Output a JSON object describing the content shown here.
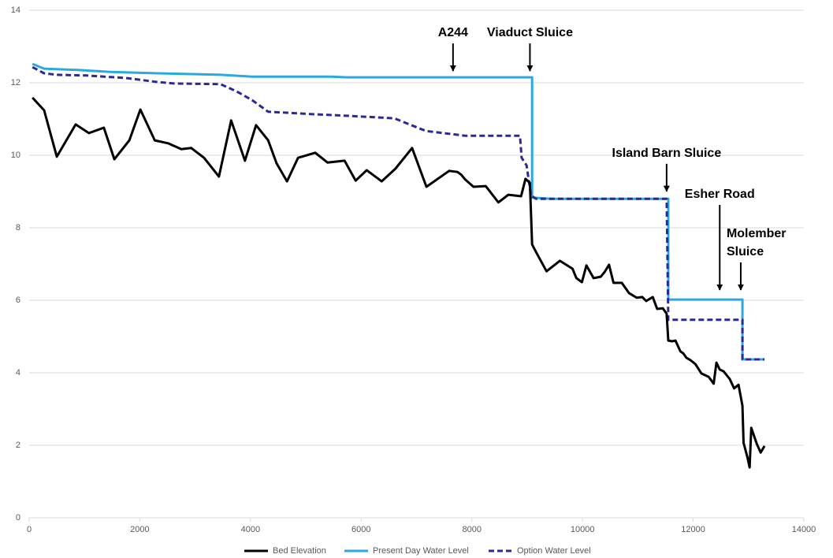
{
  "chart_data": {
    "type": "line",
    "xlim": [
      0,
      14000
    ],
    "xticks": [
      0,
      2000,
      4000,
      6000,
      8000,
      10000,
      12000,
      14000
    ],
    "ylim": [
      0,
      14
    ],
    "yticks": [
      0,
      2,
      4,
      6,
      8,
      10,
      12,
      14
    ],
    "grid": true,
    "legend": "bottom",
    "series": [
      {
        "name": "Bed Elevation",
        "color": "#000000",
        "dash": false,
        "x": [
          60,
          270,
          500,
          840,
          1080,
          1350,
          1540,
          1810,
          2010,
          2270,
          2510,
          2750,
          2930,
          3160,
          3430,
          3650,
          3900,
          4100,
          4320,
          4470,
          4660,
          4860,
          5170,
          5390,
          5700,
          5900,
          6100,
          6370,
          6620,
          6920,
          7180,
          7590,
          7740,
          7810,
          7880,
          8030,
          8250,
          8480,
          8660,
          8890,
          8970,
          9050,
          9090,
          9160,
          9350,
          9590,
          9820,
          9890,
          9990,
          10070,
          10200,
          10330,
          10400,
          10480,
          10560,
          10710,
          10840,
          10980,
          11080,
          11150,
          11270,
          11350,
          11450,
          11520,
          11550,
          11620,
          11680,
          11770,
          11820,
          11880,
          11950,
          12040,
          12150,
          12280,
          12370,
          12420,
          12480,
          12550,
          12660,
          12740,
          12820,
          12890,
          12910,
          12980,
          13020,
          13050,
          13150,
          13220,
          13290
        ],
        "values": [
          11.59,
          11.24,
          9.96,
          10.85,
          10.61,
          10.76,
          9.89,
          10.41,
          11.26,
          10.41,
          10.33,
          10.17,
          10.2,
          9.93,
          9.41,
          10.96,
          9.85,
          10.83,
          10.41,
          9.78,
          9.28,
          9.93,
          10.07,
          9.8,
          9.85,
          9.3,
          9.59,
          9.28,
          9.63,
          10.2,
          9.13,
          9.57,
          9.54,
          9.46,
          9.33,
          9.13,
          9.15,
          8.7,
          8.91,
          8.87,
          9.35,
          9.24,
          7.54,
          7.33,
          6.8,
          7.09,
          6.87,
          6.61,
          6.5,
          6.96,
          6.61,
          6.65,
          6.78,
          6.98,
          6.48,
          6.48,
          6.2,
          6.07,
          6.09,
          5.98,
          6.09,
          5.76,
          5.78,
          5.63,
          4.89,
          4.87,
          4.89,
          4.59,
          4.54,
          4.41,
          4.35,
          4.24,
          3.98,
          3.89,
          3.7,
          4.28,
          4.09,
          4.04,
          3.83,
          3.57,
          3.67,
          3.09,
          2.07,
          1.67,
          1.39,
          2.48,
          2.04,
          1.8,
          1.98
        ]
      },
      {
        "name": "Present Day Water Level",
        "color": "#2aa9df",
        "dash": false,
        "x": [
          60,
          270,
          900,
          1470,
          2320,
          3460,
          4030,
          5460,
          5740,
          9090,
          9090,
          9440,
          11550,
          11550,
          12890,
          12890,
          13290
        ],
        "values": [
          12.52,
          12.39,
          12.35,
          12.3,
          12.26,
          12.22,
          12.17,
          12.17,
          12.15,
          12.15,
          8.83,
          8.8,
          8.8,
          6.02,
          6.02,
          4.37,
          4.37
        ]
      },
      {
        "name": "Option Water Level",
        "color": "#2c2a92",
        "dash": true,
        "x": [
          60,
          270,
          500,
          1040,
          1750,
          2320,
          2610,
          3460,
          3750,
          4030,
          4320,
          5170,
          5740,
          6600,
          7170,
          7880,
          8870,
          8900,
          8990,
          9070,
          9160,
          11520,
          11550,
          12890,
          12890,
          13290
        ],
        "values": [
          12.43,
          12.26,
          12.22,
          12.2,
          12.13,
          12.02,
          11.98,
          11.96,
          11.76,
          11.52,
          11.2,
          11.13,
          11.09,
          11.02,
          10.67,
          10.54,
          10.54,
          9.93,
          9.72,
          8.89,
          8.8,
          8.8,
          5.46,
          5.46,
          4.37,
          4.37
        ]
      }
    ],
    "annotations": [
      {
        "text": "A244",
        "x": 7660,
        "y": 12.28
      },
      {
        "text": "Viaduct Sluice",
        "x": 9050,
        "y": 12.28
      },
      {
        "text": "Island Barn Sluice",
        "x": 11520,
        "y": 8.96
      },
      {
        "text": "Esher Road",
        "x": 12480,
        "y": 6.24
      },
      {
        "text": "Molember Sluice",
        "x": 12860,
        "y": 6.24
      }
    ]
  }
}
